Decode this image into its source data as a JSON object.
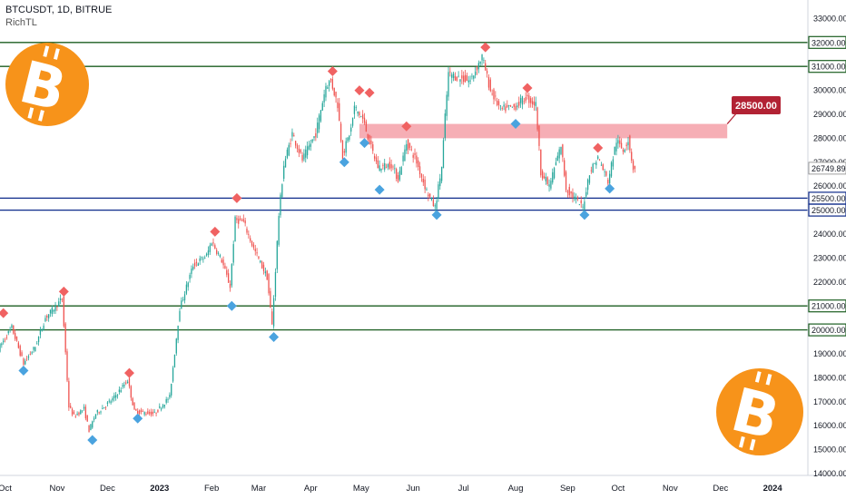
{
  "header": {
    "symbol_line": "BTCUSDT, 1D, BITRUE",
    "indicator": "RichTL"
  },
  "colors": {
    "up": "#26a69a",
    "down": "#ef5350",
    "support_line": "#1b5e20",
    "blue_line": "#0d2a8a",
    "resistance_zone": "#f4a0a8",
    "callout": "#b22234",
    "marker_red": "#f06262",
    "marker_blue": "#4aa3df",
    "bitcoin_logo": "#f7931a"
  },
  "icons": [
    "bitcoin-logo-icon-top-left",
    "bitcoin-logo-icon-bottom-right"
  ],
  "chart_data": {
    "type": "candlestick",
    "title": "BTCUSDT, 1D, BITRUE",
    "ylim": [
      14000,
      33500
    ],
    "y_ticks": [
      14000,
      15000,
      16000,
      17000,
      18000,
      19000,
      20000,
      21000,
      22000,
      23000,
      24000,
      25000,
      26000,
      27000,
      28000,
      29000,
      30000,
      31000,
      32000,
      33000
    ],
    "y_tick_labels": [
      "14000.00",
      "15000.00",
      "16000.00",
      "17000.00",
      "18000.00",
      "19000.00",
      "20000.00",
      "21000.00",
      "22000.00",
      "23000.00",
      "24000.00",
      "25000.00",
      "26000.00",
      "27000.00",
      "28000.00",
      "29000.00",
      "30000.00",
      "31000.00",
      "32000.00",
      "33000.00"
    ],
    "x_range": [
      "2022-09-28",
      "2024-01-22"
    ],
    "x_ticks": [
      {
        "date": "2022-10-01",
        "label": "Oct"
      },
      {
        "date": "2022-11-01",
        "label": "Nov"
      },
      {
        "date": "2022-12-01",
        "label": "Dec"
      },
      {
        "date": "2023-01-01",
        "label": "2023"
      },
      {
        "date": "2023-02-01",
        "label": "Feb"
      },
      {
        "date": "2023-03-01",
        "label": "Mar"
      },
      {
        "date": "2023-04-01",
        "label": "Apr"
      },
      {
        "date": "2023-05-01",
        "label": "May"
      },
      {
        "date": "2023-06-01",
        "label": "Jun"
      },
      {
        "date": "2023-07-01",
        "label": "Jul"
      },
      {
        "date": "2023-08-01",
        "label": "Aug"
      },
      {
        "date": "2023-09-01",
        "label": "Sep"
      },
      {
        "date": "2023-10-01",
        "label": "Oct"
      },
      {
        "date": "2023-11-01",
        "label": "Nov"
      },
      {
        "date": "2023-12-01",
        "label": "Dec"
      },
      {
        "date": "2024-01-01",
        "label": "2024"
      }
    ],
    "price_path": [
      [
        "2022-09-28",
        19200
      ],
      [
        "2022-10-06",
        20100
      ],
      [
        "2022-10-13",
        18600
      ],
      [
        "2022-10-20",
        19300
      ],
      [
        "2022-10-26",
        20500
      ],
      [
        "2022-11-05",
        21300
      ],
      [
        "2022-11-09",
        16800
      ],
      [
        "2022-11-12",
        16400
      ],
      [
        "2022-11-18",
        16700
      ],
      [
        "2022-11-21",
        15800
      ],
      [
        "2022-11-25",
        16500
      ],
      [
        "2022-12-05",
        17100
      ],
      [
        "2022-12-14",
        17900
      ],
      [
        "2022-12-18",
        16600
      ],
      [
        "2022-12-30",
        16500
      ],
      [
        "2023-01-08",
        17200
      ],
      [
        "2023-01-14",
        20900
      ],
      [
        "2023-01-22",
        22700
      ],
      [
        "2023-01-30",
        23100
      ],
      [
        "2023-02-02",
        23700
      ],
      [
        "2023-02-08",
        22900
      ],
      [
        "2023-02-13",
        21800
      ],
      [
        "2023-02-16",
        24600
      ],
      [
        "2023-02-21",
        24500
      ],
      [
        "2023-02-27",
        23400
      ],
      [
        "2023-03-07",
        22200
      ],
      [
        "2023-03-10",
        20200
      ],
      [
        "2023-03-14",
        24800
      ],
      [
        "2023-03-17",
        26900
      ],
      [
        "2023-03-22",
        28200
      ],
      [
        "2023-03-28",
        27100
      ],
      [
        "2023-04-05",
        28200
      ],
      [
        "2023-04-11",
        30200
      ],
      [
        "2023-04-14",
        30400
      ],
      [
        "2023-04-18",
        29400
      ],
      [
        "2023-04-21",
        27300
      ],
      [
        "2023-04-26",
        28400
      ],
      [
        "2023-04-28",
        29300
      ],
      [
        "2023-05-03",
        28800
      ],
      [
        "2023-05-08",
        27600
      ],
      [
        "2023-05-12",
        26800
      ],
      [
        "2023-05-20",
        26900
      ],
      [
        "2023-05-24",
        26300
      ],
      [
        "2023-05-29",
        27800
      ],
      [
        "2023-06-03",
        27200
      ],
      [
        "2023-06-10",
        25800
      ],
      [
        "2023-06-15",
        25100
      ],
      [
        "2023-06-19",
        26800
      ],
      [
        "2023-06-21",
        28900
      ],
      [
        "2023-06-23",
        30700
      ],
      [
        "2023-06-30",
        30500
      ],
      [
        "2023-07-06",
        30400
      ],
      [
        "2023-07-13",
        31400
      ],
      [
        "2023-07-18",
        30000
      ],
      [
        "2023-07-24",
        29200
      ],
      [
        "2023-08-01",
        29300
      ],
      [
        "2023-08-08",
        29700
      ],
      [
        "2023-08-14",
        29400
      ],
      [
        "2023-08-17",
        26600
      ],
      [
        "2023-08-22",
        26000
      ],
      [
        "2023-08-29",
        27700
      ],
      [
        "2023-09-01",
        25900
      ],
      [
        "2023-09-11",
        25100
      ],
      [
        "2023-09-15",
        26600
      ],
      [
        "2023-09-20",
        27200
      ],
      [
        "2023-09-26",
        26200
      ],
      [
        "2023-10-01",
        27900
      ],
      [
        "2023-10-05",
        27500
      ],
      [
        "2023-10-08",
        27950
      ],
      [
        "2023-10-11",
        26749.89
      ]
    ],
    "horizontal_lines": [
      {
        "price": 32000,
        "label": "32000.00",
        "kind": "green"
      },
      {
        "price": 31000,
        "label": "31000.00",
        "kind": "green"
      },
      {
        "price": 25500,
        "label": "25500.00",
        "kind": "blue"
      },
      {
        "price": 25000,
        "label": "25000.00",
        "kind": "blue"
      },
      {
        "price": 21000,
        "label": "21000.00",
        "kind": "green"
      },
      {
        "price": 20000,
        "label": "20000.00",
        "kind": "green"
      }
    ],
    "zone": {
      "from_date": "2023-04-30",
      "to_date": "2023-12-05",
      "low": 28000,
      "high": 28600
    },
    "callout_label": "28500.00",
    "last_price": 26749.89,
    "last_price_label": "26749.89",
    "markers": [
      {
        "date": "2022-09-30",
        "price": 20700,
        "type": "red"
      },
      {
        "date": "2022-10-12",
        "price": 18300,
        "type": "blue"
      },
      {
        "date": "2022-11-05",
        "price": 21600,
        "type": "red"
      },
      {
        "date": "2022-11-22",
        "price": 15400,
        "type": "blue"
      },
      {
        "date": "2022-12-14",
        "price": 18200,
        "type": "red"
      },
      {
        "date": "2022-12-19",
        "price": 16300,
        "type": "blue"
      },
      {
        "date": "2023-02-03",
        "price": 24100,
        "type": "red"
      },
      {
        "date": "2023-02-13",
        "price": 21000,
        "type": "blue"
      },
      {
        "date": "2023-02-16",
        "price": 25500,
        "type": "red"
      },
      {
        "date": "2023-03-10",
        "price": 19700,
        "type": "blue"
      },
      {
        "date": "2023-04-14",
        "price": 30800,
        "type": "red"
      },
      {
        "date": "2023-04-21",
        "price": 27000,
        "type": "blue"
      },
      {
        "date": "2023-04-30",
        "price": 30000,
        "type": "red"
      },
      {
        "date": "2023-05-03",
        "price": 27800,
        "type": "blue"
      },
      {
        "date": "2023-05-06",
        "price": 29900,
        "type": "red"
      },
      {
        "date": "2023-05-12",
        "price": 25850,
        "type": "blue"
      },
      {
        "date": "2023-05-28",
        "price": 28500,
        "type": "red"
      },
      {
        "date": "2023-06-15",
        "price": 24800,
        "type": "blue"
      },
      {
        "date": "2023-07-14",
        "price": 31800,
        "type": "red"
      },
      {
        "date": "2023-08-01",
        "price": 28600,
        "type": "blue"
      },
      {
        "date": "2023-08-08",
        "price": 30100,
        "type": "red"
      },
      {
        "date": "2023-09-11",
        "price": 24800,
        "type": "blue"
      },
      {
        "date": "2023-09-19",
        "price": 27600,
        "type": "red"
      },
      {
        "date": "2023-09-26",
        "price": 25900,
        "type": "blue"
      }
    ]
  }
}
